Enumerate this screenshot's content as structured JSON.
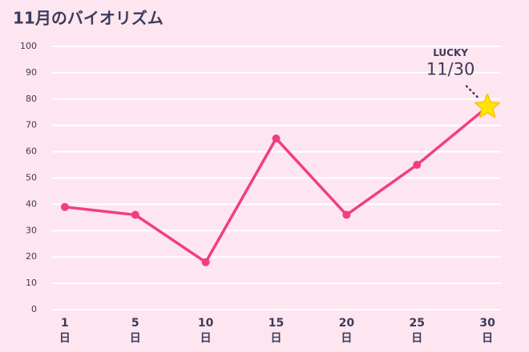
{
  "chart_data": {
    "type": "line",
    "title": "11月のバイオリズム",
    "categories": [
      "1",
      "5",
      "10",
      "15",
      "20",
      "25",
      "30"
    ],
    "x_unit": "日",
    "series": [
      {
        "name": "バイオリズム",
        "color": "#f23e7e",
        "values": [
          39,
          36,
          18,
          65,
          36,
          55,
          77
        ]
      }
    ],
    "ylim": [
      0,
      100
    ],
    "yticks": [
      0,
      10,
      20,
      30,
      40,
      50,
      60,
      70,
      80,
      90,
      100
    ],
    "grid": true,
    "highlight_marker": "star",
    "highlight_color": "#ffe600",
    "annotation": {
      "label": "LUCKY",
      "text": "11/30"
    }
  }
}
